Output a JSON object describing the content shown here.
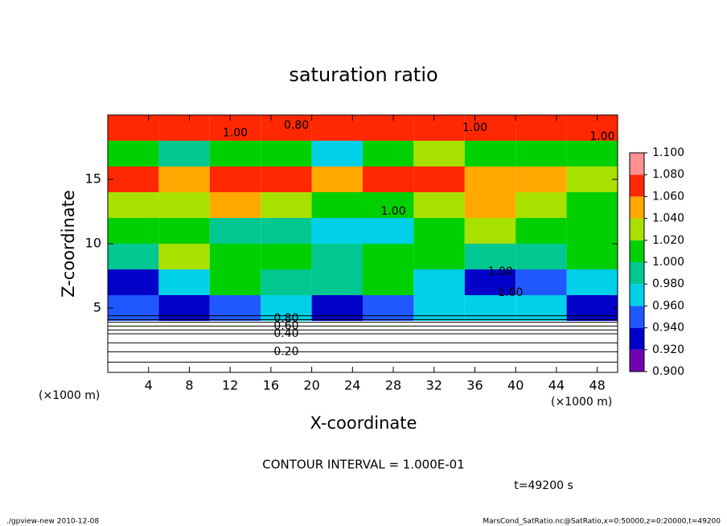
{
  "chart_data": {
    "type": "heatmap",
    "title": "saturation ratio",
    "xlabel": "X-coordinate",
    "ylabel": "Z-coordinate",
    "x_unit": "(×1000 m)",
    "y_unit": "(×1000 m)",
    "xlim": [
      0,
      50
    ],
    "ylim": [
      0,
      20
    ],
    "xticks": [
      4,
      8,
      12,
      16,
      20,
      24,
      28,
      32,
      36,
      40,
      44,
      48
    ],
    "yticks": [
      5,
      10,
      15
    ],
    "x_bins": [
      0,
      5,
      10,
      15,
      20,
      25,
      30,
      35,
      40,
      45,
      50
    ],
    "z_bins": [
      0,
      2,
      4,
      6,
      8,
      10,
      12,
      14,
      16,
      18,
      20
    ],
    "z_values": [
      [
        0.2,
        0.2,
        0.2,
        0.2,
        0.2,
        0.2,
        0.2,
        0.2,
        0.2,
        0.2
      ],
      [
        0.5,
        0.5,
        0.5,
        0.5,
        0.5,
        0.5,
        0.5,
        0.5,
        0.5,
        0.5
      ],
      [
        0.94,
        0.93,
        0.95,
        0.96,
        0.92,
        0.95,
        0.97,
        0.96,
        0.97,
        0.93
      ],
      [
        0.92,
        0.96,
        1.0,
        0.99,
        0.98,
        1.0,
        0.97,
        0.93,
        0.94,
        0.96
      ],
      [
        0.98,
        1.03,
        1.0,
        1.01,
        0.99,
        1.0,
        1.0,
        0.99,
        0.98,
        1.0
      ],
      [
        1.01,
        1.0,
        0.99,
        0.98,
        0.97,
        0.96,
        1.0,
        1.02,
        1.01,
        1.0
      ],
      [
        1.03,
        1.02,
        1.04,
        1.02,
        1.01,
        1.0,
        1.03,
        1.04,
        1.02,
        1.01
      ],
      [
        1.06,
        1.05,
        1.07,
        1.06,
        1.05,
        1.07,
        1.06,
        1.04,
        1.05,
        1.03
      ],
      [
        1.01,
        0.99,
        1.0,
        1.01,
        0.97,
        1.0,
        1.02,
        1.0,
        1.01,
        1.0
      ],
      [
        1.06,
        1.07,
        1.06,
        1.07,
        1.07,
        1.06,
        1.06,
        1.07,
        1.06,
        1.06
      ]
    ],
    "levels": [
      0.9,
      0.92,
      0.94,
      0.96,
      0.98,
      1.0,
      1.02,
      1.04,
      1.06,
      1.08,
      1.1
    ],
    "colors": [
      "#7000b0",
      "#0000c8",
      "#2058ff",
      "#00d0e8",
      "#00c890",
      "#00d000",
      "#a8e000",
      "#ffa800",
      "#ff2800",
      "#ff9090"
    ],
    "colorbar_ticks": [
      {
        "value": 0.9,
        "label": "0.900"
      },
      {
        "value": 0.92,
        "label": "0.920"
      },
      {
        "value": 0.94,
        "label": "0.940"
      },
      {
        "value": 0.96,
        "label": "0.960"
      },
      {
        "value": 0.98,
        "label": "0.980"
      },
      {
        "value": 1.0,
        "label": "1.000"
      },
      {
        "value": 1.02,
        "label": "1.020"
      },
      {
        "value": 1.04,
        "label": "1.040"
      },
      {
        "value": 1.06,
        "label": "1.060"
      },
      {
        "value": 1.08,
        "label": "1.080"
      },
      {
        "value": 1.1,
        "label": "1.100"
      }
    ],
    "contours": [
      {
        "level": 0.1,
        "z": 0.8
      },
      {
        "level": 0.2,
        "z": 1.6
      },
      {
        "level": 0.3,
        "z": 2.3
      },
      {
        "level": 0.4,
        "z": 3.0
      },
      {
        "level": 0.5,
        "z": 3.3
      },
      {
        "level": 0.6,
        "z": 3.6
      },
      {
        "level": 0.7,
        "z": 3.9
      },
      {
        "level": 0.8,
        "z": 4.1
      },
      {
        "level": 0.9,
        "z": 4.4
      }
    ],
    "contour_labels": [
      {
        "label": "0.20",
        "x": 17.5,
        "z": 1.6
      },
      {
        "label": "0.40",
        "x": 17.5,
        "z": 3.0
      },
      {
        "label": "0.60",
        "x": 17.5,
        "z": 3.6
      },
      {
        "label": "0.80",
        "x": 17.5,
        "z": 4.2
      },
      {
        "label": "0.80",
        "x": 18.5,
        "z": 19.2
      },
      {
        "label": "1.00",
        "x": 12.5,
        "z": 18.6
      },
      {
        "label": "1.00",
        "x": 48.5,
        "z": 18.3
      },
      {
        "label": "1.00",
        "x": 36,
        "z": 19.0
      },
      {
        "label": "1.00",
        "x": 28,
        "z": 12.5
      },
      {
        "label": "1.00",
        "x": 38.5,
        "z": 7.8
      },
      {
        "label": "1.00",
        "x": 39.5,
        "z": 6.2
      }
    ],
    "annotation": "CONTOUR INTERVAL = 1.000E-01",
    "time_label": "t=49200 s",
    "footer_left": "./gpview-new  2010-12-08",
    "footer_right": "MarsCond_SatRatio.nc@SatRatio,x=0:50000,z=0:20000,t=49200"
  }
}
